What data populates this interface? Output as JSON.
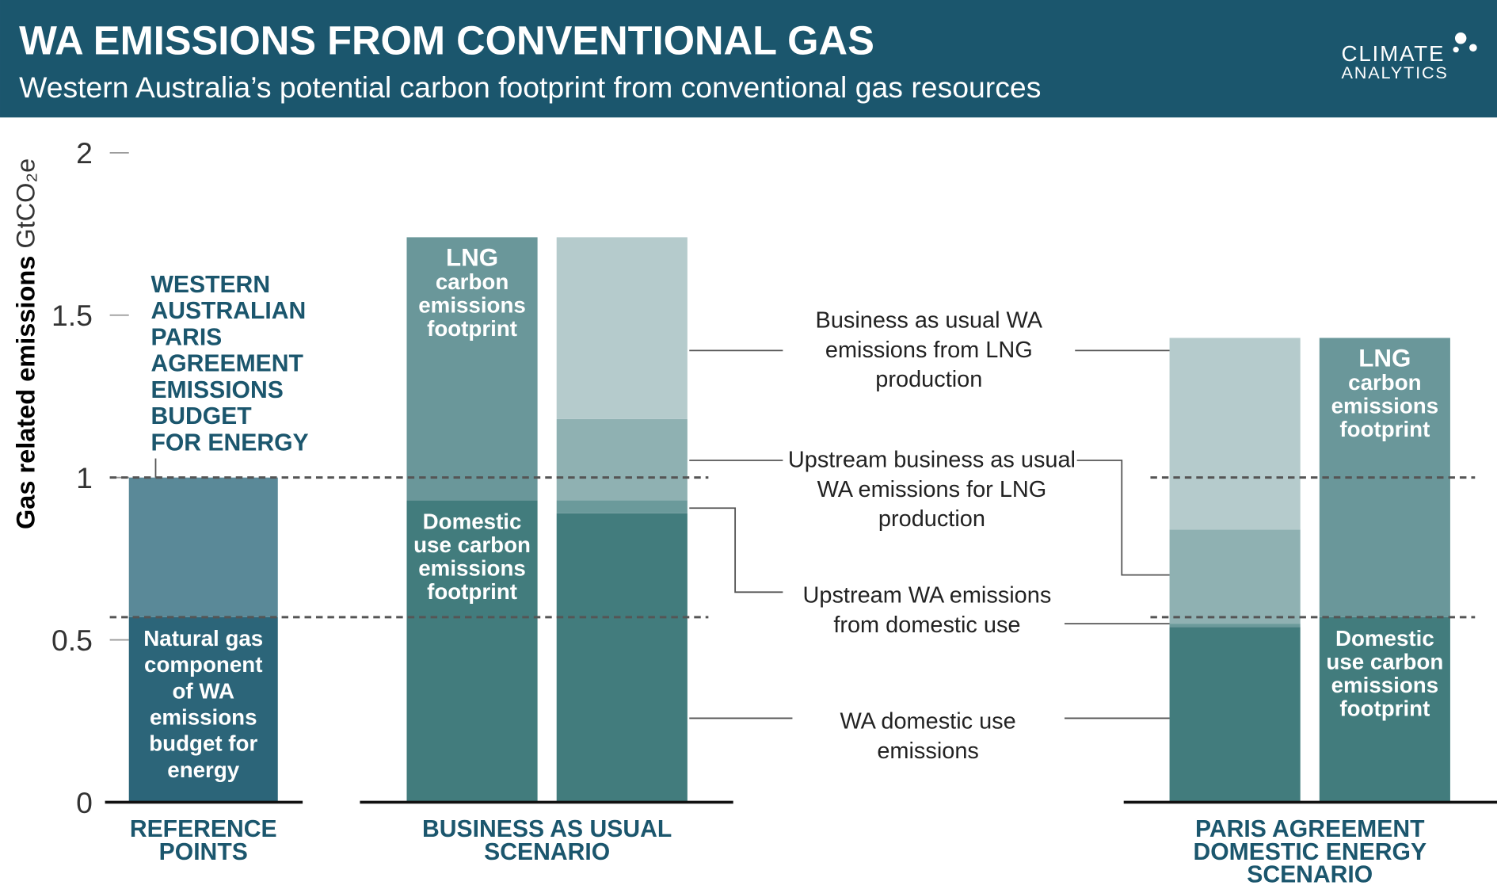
{
  "header": {
    "title": "WA EMISSIONS FROM CONVENTIONAL GAS",
    "subtitle": "Western Australia’s potential carbon footprint from conventional gas resources",
    "logo": [
      "CLIMATE",
      "ANALYTICS"
    ]
  },
  "chart_data": {
    "type": "stacked-bar",
    "y_label": "Gas related emissions",
    "y_unit": "GtCO₂e",
    "ylim": [
      0,
      2
    ],
    "yticks": [
      0,
      0.5,
      1,
      1.5,
      2
    ],
    "reference_lines": [
      1,
      0.57
    ],
    "reference_note": [
      "WESTERN",
      "AUSTRALIAN",
      "PARIS",
      "AGREEMENT",
      "EMISSIONS",
      "BUDGET",
      "FOR ENERGY"
    ],
    "groups": [
      {
        "label": [
          "REFERENCE",
          "POINTS"
        ],
        "bars": [
          {
            "segments": [
              {
                "value": 0.57,
                "color": "#2c6579",
                "label": [
                  "Natural gas",
                  "component",
                  "of WA",
                  "emissions",
                  "budget for",
                  "energy"
                ]
              },
              {
                "value": 0.43,
                "color": "#5a8998"
              }
            ]
          }
        ]
      },
      {
        "label": [
          "BUSINESS AS USUAL",
          "SCENARIO"
        ],
        "bars": [
          {
            "segments": [
              {
                "value": 0.93,
                "color": "#427c7d",
                "label": [
                  "Domestic",
                  "use carbon",
                  "emissions",
                  "footprint"
                ]
              },
              {
                "value": 0.81,
                "color": "#6a979a",
                "label": [
                  "LNG",
                  "carbon",
                  "emissions",
                  "footprint"
                ]
              }
            ]
          },
          {
            "segments": [
              {
                "value": 0.89,
                "color": "#427c7d"
              },
              {
                "value": 0.04,
                "color": "#6b9a9b"
              },
              {
                "value": 0.25,
                "color": "#8fb1b2"
              },
              {
                "value": 0.56,
                "color": "#b5cbcc"
              }
            ]
          }
        ]
      },
      {
        "label": [
          "PARIS AGREEMENT",
          "DOMESTIC ENERGY",
          "SCENARIO"
        ],
        "bars": [
          {
            "segments": [
              {
                "value": 0.54,
                "color": "#427c7d"
              },
              {
                "value": 0.01,
                "color": "#6b9a9b"
              },
              {
                "value": 0.29,
                "color": "#8fb1b2"
              },
              {
                "value": 0.59,
                "color": "#b5cbcc"
              }
            ]
          },
          {
            "segments": [
              {
                "value": 0.57,
                "color": "#427c7d",
                "label": [
                  "Domestic",
                  "use carbon",
                  "emissions",
                  "footprint"
                ]
              },
              {
                "value": 0.86,
                "color": "#6a979a",
                "label": [
                  "LNG",
                  "carbon",
                  "emissions",
                  "footprint"
                ]
              }
            ]
          }
        ]
      }
    ],
    "annotations": [
      [
        "Business as usual WA",
        "emissions from LNG",
        "production"
      ],
      [
        "Upstream business as usual",
        "WA emissions for LNG",
        "production"
      ],
      [
        "Upstream WA emissions",
        "from domestic use"
      ],
      [
        "WA domestic use",
        "emissions"
      ]
    ]
  }
}
